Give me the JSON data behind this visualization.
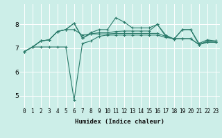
{
  "title": "",
  "xlabel": "Humidex (Indice chaleur)",
  "bg_color": "#cceee8",
  "line_color": "#2a7a6a",
  "grid_color": "#ffffff",
  "xlim": [
    -0.5,
    23.5
  ],
  "ylim": [
    4.5,
    8.85
  ],
  "xticks": [
    0,
    1,
    2,
    3,
    4,
    5,
    6,
    7,
    8,
    9,
    10,
    11,
    12,
    13,
    14,
    15,
    16,
    17,
    18,
    19,
    20,
    21,
    22,
    23
  ],
  "yticks": [
    5,
    6,
    7,
    8
  ],
  "series": [
    [
      6.85,
      7.05,
      7.05,
      7.05,
      7.05,
      7.05,
      4.82,
      7.2,
      7.3,
      7.5,
      7.55,
      7.55,
      7.55,
      7.55,
      7.55,
      7.55,
      7.55,
      7.45,
      7.4,
      7.4,
      7.4,
      7.15,
      7.25,
      7.25
    ],
    [
      6.85,
      7.05,
      7.3,
      7.35,
      7.7,
      7.78,
      7.78,
      7.55,
      7.6,
      7.6,
      7.6,
      7.62,
      7.62,
      7.62,
      7.62,
      7.62,
      7.62,
      7.5,
      7.4,
      7.4,
      7.4,
      7.15,
      7.25,
      7.25
    ],
    [
      6.85,
      7.05,
      7.3,
      7.35,
      7.7,
      7.78,
      8.05,
      7.42,
      7.6,
      7.65,
      7.65,
      7.7,
      7.72,
      7.72,
      7.72,
      7.72,
      8.0,
      7.5,
      7.38,
      7.78,
      7.78,
      7.15,
      7.3,
      7.3
    ],
    [
      6.85,
      7.05,
      7.3,
      7.35,
      7.7,
      7.78,
      8.05,
      7.42,
      7.65,
      7.78,
      7.78,
      8.28,
      8.1,
      7.85,
      7.85,
      7.85,
      8.0,
      7.55,
      7.38,
      7.78,
      7.78,
      7.2,
      7.35,
      7.3
    ]
  ],
  "linewidth": 0.8,
  "markersize": 2.5,
  "xlabel_fontsize": 6.5,
  "tick_fontsize": 5.5
}
